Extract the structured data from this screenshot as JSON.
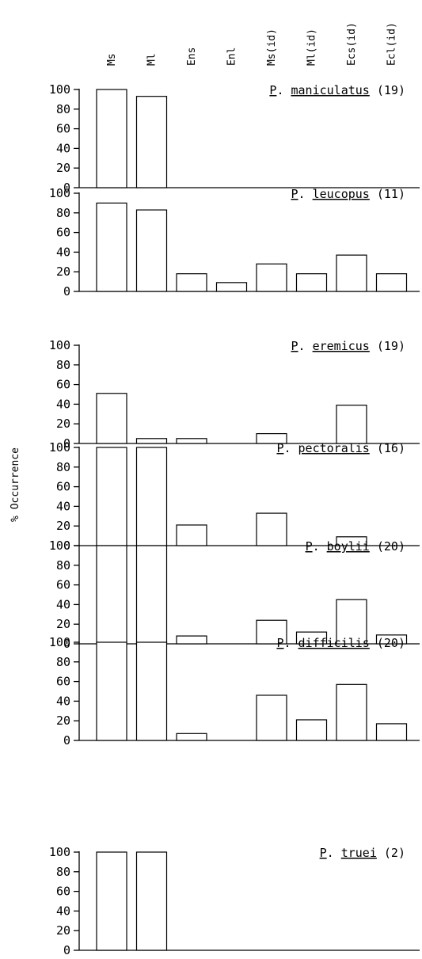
{
  "chart_data": {
    "type": "bar",
    "categories": [
      "Ms",
      "Ml",
      "Ens",
      "Enl",
      "Ms(id)",
      "Ml(id)",
      "Ecs(id)",
      "Ecl(id)"
    ],
    "ylabel": "% Occurrence",
    "ylim": [
      0,
      100
    ],
    "yticks": [
      "0",
      "20",
      "40",
      "60",
      "80",
      "100"
    ],
    "panels": [
      {
        "genus": "P",
        "species": "maniculatus",
        "n": "(19)",
        "values": [
          100,
          93,
          0,
          0,
          0,
          0,
          0,
          0
        ]
      },
      {
        "genus": "P",
        "species": "leucopus",
        "n": "(11)",
        "values": [
          90,
          83,
          18,
          9,
          28,
          18,
          37,
          18
        ]
      },
      {
        "genus": "P",
        "species": "eremicus",
        "n": "(19)",
        "values": [
          51,
          5,
          5,
          0,
          10,
          0,
          39,
          0
        ]
      },
      {
        "genus": "P",
        "species": "pectoralis",
        "n": "(16)",
        "values": [
          100,
          100,
          21,
          0,
          33,
          0,
          9,
          0
        ]
      },
      {
        "genus": "P",
        "species": "boylii",
        "n": "(20)",
        "values": [
          100,
          100,
          8,
          0,
          24,
          12,
          45,
          9
        ]
      },
      {
        "genus": "P",
        "species": "difficilis",
        "n": "(20)",
        "values": [
          100,
          100,
          7,
          0,
          46,
          21,
          57,
          17
        ]
      },
      {
        "genus": "P",
        "species": "truei",
        "n": "(2)",
        "values": [
          100,
          100,
          0,
          0,
          0,
          0,
          0,
          0
        ]
      }
    ]
  }
}
